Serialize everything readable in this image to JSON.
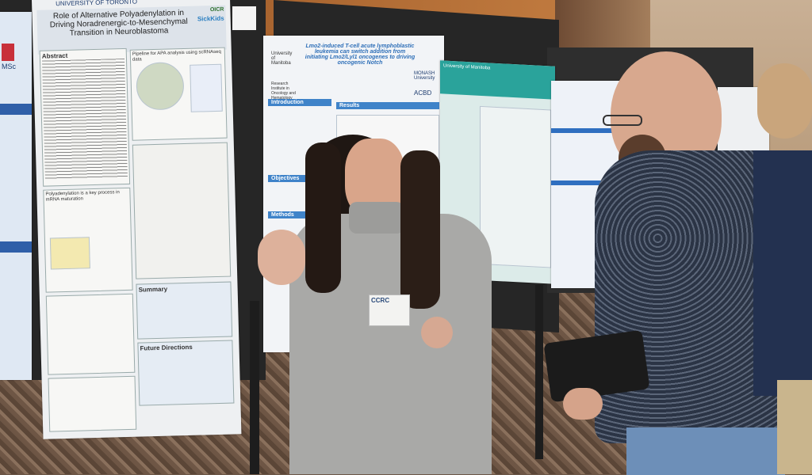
{
  "scene": "poster-session",
  "left_poster": {
    "institution": "UNIVERSITY OF TORONTO",
    "logos": [
      "OICR",
      "SickKids"
    ],
    "title": "Role of Alternative Polyadenylation in Driving Noradrenergic-to-Mesenchymal Transition in Neuroblastoma",
    "sections": [
      "Abstract",
      "Pipeline for APA analysis using scRNAseq data",
      "Polyadenylation is a key process in mRNA maturation",
      "Summary",
      "Future Directions"
    ]
  },
  "far_left_poster": {
    "label": "MSc"
  },
  "middle_poster": {
    "title": "Lmo2-induced T-cell acute lymphoblastic leukemia can switch addition from initiating Lmo2/Lyl1 oncogenes to driving oncogenic Notch",
    "logos": [
      "University of Manitoba",
      "Research Institute in Oncology and Hematology",
      "MONASH University",
      "ACBD"
    ],
    "sections": [
      "Introduction",
      "Results",
      "Objectives",
      "Methods"
    ]
  },
  "teal_poster": {
    "logo": "University of Manitoba"
  },
  "badge": {
    "logo": "CCRC"
  },
  "colors": {
    "poster_blue": "#3f83c9",
    "teal": "#2aa39b",
    "sweater": "#a9a9a7",
    "shirt": "#2b3445",
    "wall": "#b8743e"
  }
}
